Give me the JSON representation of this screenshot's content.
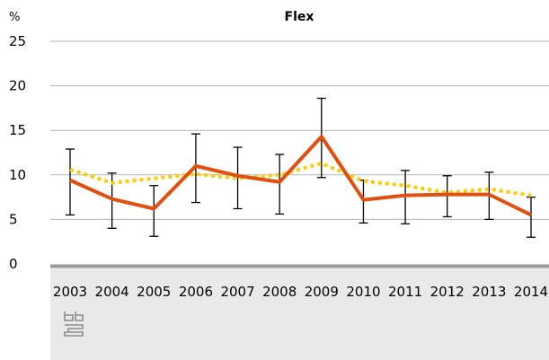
{
  "chart_data": {
    "type": "line",
    "title": "Flex",
    "y_unit": "%",
    "ylim": [
      0,
      25
    ],
    "y_ticks": [
      0,
      5,
      10,
      15,
      20,
      25
    ],
    "grid": true,
    "x": [
      "2003",
      "2004",
      "2005",
      "2006",
      "2007",
      "2008",
      "2009",
      "2010",
      "2011",
      "2012",
      "2013",
      "2014"
    ],
    "series": [
      {
        "color": "#e1500f",
        "style": "solid",
        "values": [
          9.4,
          7.3,
          6.2,
          11.0,
          9.9,
          9.2,
          14.3,
          7.2,
          7.7,
          7.8,
          7.8,
          5.5
        ],
        "error_low": [
          5.5,
          4.0,
          3.1,
          6.9,
          6.2,
          5.6,
          9.7,
          4.6,
          4.5,
          5.3,
          5.0,
          3.0
        ],
        "error_high": [
          12.9,
          10.2,
          8.8,
          14.6,
          13.1,
          12.3,
          18.6,
          9.4,
          10.5,
          9.9,
          10.3,
          7.5
        ]
      },
      {
        "color": "#ffcc00",
        "style": "dotted",
        "values": [
          10.6,
          9.1,
          9.6,
          10.1,
          9.6,
          10.0,
          11.3,
          9.3,
          8.8,
          8.0,
          8.4,
          7.7
        ]
      }
    ]
  },
  "footer": {
    "logo": "cbs"
  }
}
